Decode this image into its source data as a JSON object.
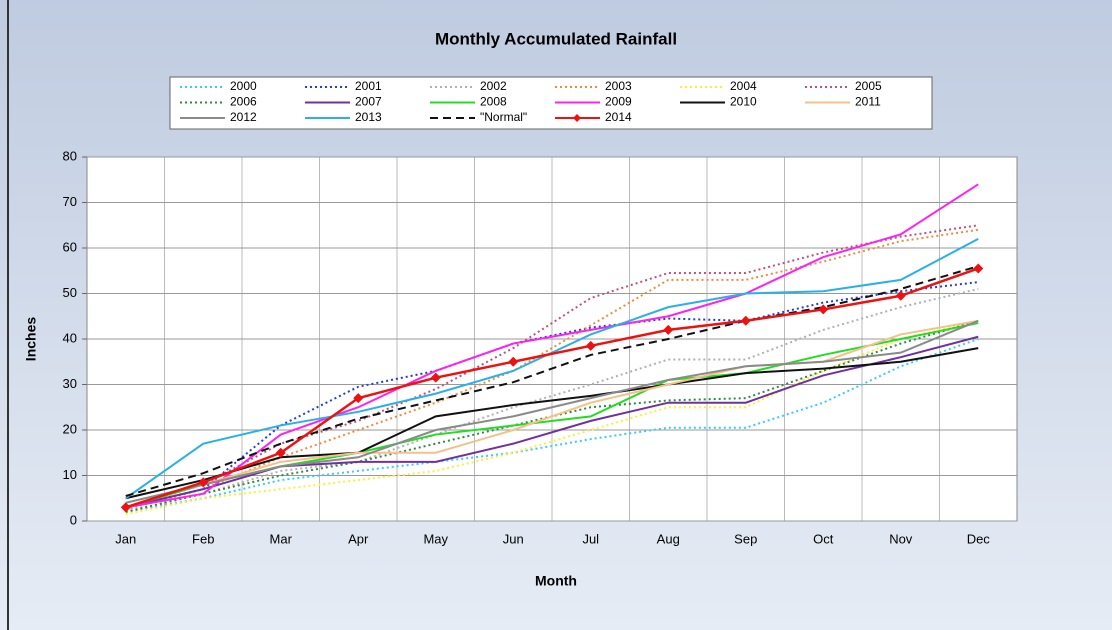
{
  "chart_data": {
    "type": "line",
    "title": "Monthly Accumulated Rainfall",
    "x_label": "Month",
    "y_label": "Inches",
    "categories": [
      "Jan",
      "Feb",
      "Mar",
      "Apr",
      "May",
      "Jun",
      "Jul",
      "Aug",
      "Sep",
      "Oct",
      "Nov",
      "Dec"
    ],
    "ylim": [
      0,
      80
    ],
    "yticks": [
      0,
      10,
      20,
      30,
      40,
      50,
      60,
      70,
      80
    ],
    "grid": true,
    "series": [
      {
        "name": "2000",
        "color": "#33ccff",
        "style": "dotted",
        "values": [
          2,
          5,
          9,
          11,
          13,
          15,
          18,
          20.5,
          20.5,
          26,
          34,
          40
        ]
      },
      {
        "name": "2001",
        "color": "#1f3fd6",
        "style": "dotted",
        "values": [
          3,
          7,
          21,
          29.5,
          33,
          39,
          42.5,
          44.5,
          44,
          48,
          50.5,
          52.5
        ]
      },
      {
        "name": "2002",
        "color": "#b0b0b0",
        "style": "dotted",
        "values": [
          2,
          6,
          11,
          13,
          19,
          25,
          30,
          35.5,
          35.5,
          42,
          47,
          51
        ]
      },
      {
        "name": "2003",
        "color": "#f08a3c",
        "style": "dotted",
        "values": [
          2.5,
          7,
          14,
          20,
          26,
          33,
          43,
          53,
          53,
          57,
          61.5,
          64
        ]
      },
      {
        "name": "2004",
        "color": "#ffee33",
        "style": "dotted",
        "values": [
          1.5,
          5,
          7,
          9,
          11,
          15,
          20,
          25,
          25,
          33,
          40,
          44
        ]
      },
      {
        "name": "2005",
        "color": "#c0507a",
        "style": "dotted",
        "values": [
          3,
          8,
          17,
          22,
          29,
          38,
          49,
          54.5,
          54.5,
          59,
          62.5,
          65
        ]
      },
      {
        "name": "2006",
        "color": "#2e8b3e",
        "style": "dotted",
        "values": [
          2,
          6,
          10,
          13,
          17,
          21,
          25,
          26.5,
          27,
          33,
          39,
          44
        ]
      },
      {
        "name": "2007",
        "color": "#7030a0",
        "style": "solid",
        "values": [
          3,
          7,
          12,
          13,
          13,
          17,
          22,
          26,
          26,
          32,
          36,
          40.5
        ]
      },
      {
        "name": "2008",
        "color": "#22dd22",
        "style": "solid",
        "values": [
          3,
          8,
          12,
          15,
          19,
          21,
          23,
          31,
          32.5,
          36.5,
          40,
          43.5
        ]
      },
      {
        "name": "2009",
        "color": "#ff22ee",
        "style": "solid",
        "values": [
          3,
          6,
          19,
          25,
          33,
          39,
          42,
          45,
          50,
          58,
          63,
          74
        ]
      },
      {
        "name": "2010",
        "color": "#111111",
        "style": "solid",
        "values": [
          5,
          9,
          14,
          15,
          23,
          25.5,
          27.5,
          30,
          32.5,
          33.5,
          35,
          38
        ]
      },
      {
        "name": "2011",
        "color": "#f5c08a",
        "style": "solid",
        "values": [
          4,
          8,
          13,
          15,
          15,
          20,
          26,
          30,
          34,
          35,
          41,
          44
        ]
      },
      {
        "name": "2012",
        "color": "#8a8a8a",
        "style": "solid",
        "values": [
          4,
          8,
          12,
          14,
          20,
          23,
          27,
          31,
          34,
          35,
          37,
          44
        ]
      },
      {
        "name": "2013",
        "color": "#2ab0e8",
        "style": "solid",
        "values": [
          5,
          17,
          21,
          24,
          28,
          33,
          41,
          47,
          50,
          50.5,
          53,
          62
        ]
      },
      {
        "name": "\"Normal\"",
        "color": "#111111",
        "style": "dashed",
        "values": [
          5.5,
          10.5,
          17,
          22.5,
          26.5,
          30.5,
          36.5,
          40,
          44,
          47,
          51,
          56
        ]
      },
      {
        "name": "2014",
        "color": "#ee1111",
        "style": "solid",
        "marker": "diamond",
        "values": [
          3,
          8.5,
          15,
          27,
          31.5,
          35,
          38.5,
          42,
          44,
          46.5,
          49.5,
          55.5
        ]
      }
    ]
  }
}
